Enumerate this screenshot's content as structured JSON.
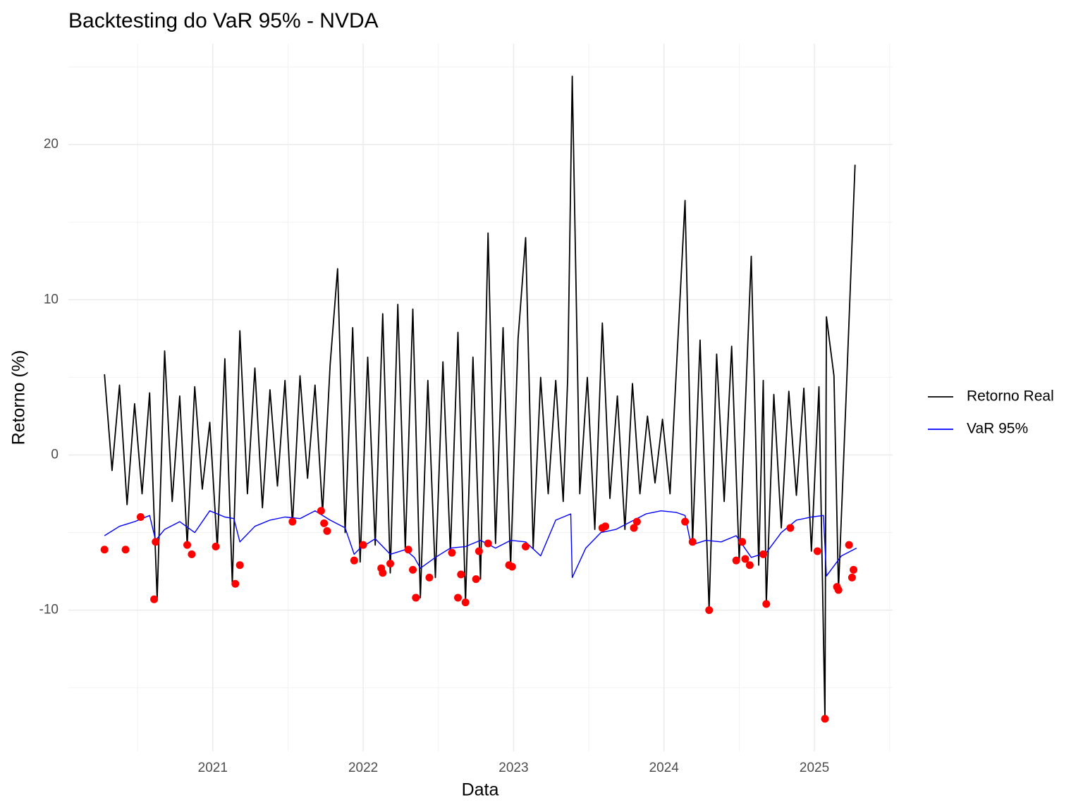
{
  "chart_data": {
    "type": "line",
    "title": "Backtesting do VaR 95% - NVDA",
    "x_label": "Data",
    "y_label": "Retorno (%)",
    "xlim": [
      2020.04,
      2025.52
    ],
    "xticks": [
      2021,
      2022,
      2023,
      2024,
      2025
    ],
    "ylim": [
      -19.1,
      26.5
    ],
    "yticks": [
      -10,
      0,
      10,
      20
    ],
    "grid": true,
    "legend": "right",
    "series": [
      {
        "name": "Retorno Real",
        "color": "#000000",
        "x": [
          2020.28,
          2020.33,
          2020.38,
          2020.43,
          2020.48,
          2020.53,
          2020.58,
          2020.63,
          2020.68,
          2020.73,
          2020.78,
          2020.83,
          2020.88,
          2020.93,
          2020.98,
          2021.03,
          2021.08,
          2021.13,
          2021.18,
          2021.23,
          2021.28,
          2021.33,
          2021.38,
          2021.43,
          2021.48,
          2021.53,
          2021.58,
          2021.63,
          2021.68,
          2021.73,
          2021.78,
          2021.83,
          2021.88,
          2021.93,
          2021.98,
          2022.03,
          2022.08,
          2022.13,
          2022.18,
          2022.23,
          2022.28,
          2022.33,
          2022.38,
          2022.43,
          2022.48,
          2022.53,
          2022.58,
          2022.63,
          2022.68,
          2022.73,
          2022.78,
          2022.83,
          2022.88,
          2022.93,
          2022.98,
          2023.03,
          2023.08,
          2023.13,
          2023.18,
          2023.23,
          2023.28,
          2023.33,
          2023.36,
          2023.39,
          2023.44,
          2023.49,
          2023.54,
          2023.59,
          2023.64,
          2023.69,
          2023.74,
          2023.79,
          2023.84,
          2023.89,
          2023.94,
          2023.99,
          2024.04,
          2024.09,
          2024.14,
          2024.19,
          2024.24,
          2024.3,
          2024.35,
          2024.4,
          2024.45,
          2024.5,
          2024.58,
          2024.63,
          2024.66,
          2024.68,
          2024.73,
          2024.78,
          2024.83,
          2024.88,
          2024.93,
          2024.98,
          2025.03,
          2025.07,
          2025.08,
          2025.13,
          2025.16,
          2025.21,
          2025.27
        ],
        "values": [
          5.2,
          -1.0,
          4.5,
          -3.2,
          3.3,
          -2.5,
          4.0,
          -9.3,
          6.7,
          -3.0,
          3.8,
          -5.8,
          4.4,
          -2.2,
          2.1,
          -6.0,
          6.2,
          -8.3,
          8.0,
          -2.5,
          5.6,
          -3.4,
          4.2,
          -2.0,
          4.8,
          -4.5,
          5.1,
          -1.5,
          4.5,
          -3.7,
          5.8,
          12.0,
          -5.0,
          8.2,
          -6.9,
          6.3,
          -5.8,
          9.1,
          -7.6,
          9.7,
          -6.1,
          9.4,
          -9.2,
          4.8,
          -7.9,
          6.0,
          -6.3,
          7.9,
          -9.5,
          6.3,
          -8.0,
          14.3,
          -5.7,
          8.2,
          -7.2,
          7.5,
          14.0,
          -6.0,
          5.0,
          -2.5,
          4.8,
          -3.0,
          5.0,
          24.4,
          -2.5,
          5.0,
          -4.8,
          8.5,
          -2.8,
          3.8,
          -4.8,
          4.6,
          -2.5,
          2.5,
          -1.8,
          2.3,
          -2.5,
          7.0,
          16.4,
          -5.6,
          7.4,
          -10.0,
          6.5,
          -3.0,
          7.0,
          -6.8,
          12.8,
          -7.1,
          4.8,
          -9.6,
          3.9,
          -4.7,
          4.1,
          -2.6,
          4.3,
          -6.2,
          4.4,
          -17.0,
          8.9,
          5.1,
          -8.7,
          3.6,
          18.7
        ]
      },
      {
        "name": "VaR 95%",
        "color": "#0000ff",
        "x": [
          2020.28,
          2020.38,
          2020.48,
          2020.58,
          2020.62,
          2020.68,
          2020.78,
          2020.88,
          2020.98,
          2021.08,
          2021.14,
          2021.18,
          2021.28,
          2021.38,
          2021.48,
          2021.58,
          2021.68,
          2021.78,
          2021.88,
          2021.94,
          2021.98,
          2022.08,
          2022.18,
          2022.28,
          2022.34,
          2022.38,
          2022.48,
          2022.58,
          2022.68,
          2022.78,
          2022.88,
          2022.98,
          2023.08,
          2023.18,
          2023.28,
          2023.38,
          2023.39,
          2023.48,
          2023.58,
          2023.68,
          2023.78,
          2023.88,
          2023.98,
          2024.08,
          2024.14,
          2024.18,
          2024.28,
          2024.38,
          2024.48,
          2024.58,
          2024.68,
          2024.78,
          2024.88,
          2024.98,
          2025.06,
          2025.08,
          2025.18,
          2025.28
        ],
        "values": [
          -5.2,
          -4.6,
          -4.3,
          -3.9,
          -5.5,
          -4.8,
          -4.3,
          -5.0,
          -3.6,
          -4.0,
          -4.1,
          -5.6,
          -4.6,
          -4.2,
          -4.0,
          -4.1,
          -3.6,
          -4.2,
          -4.7,
          -6.4,
          -6.0,
          -5.4,
          -6.4,
          -6.1,
          -6.6,
          -7.3,
          -6.6,
          -6.0,
          -5.9,
          -5.5,
          -6.0,
          -5.5,
          -5.6,
          -6.5,
          -4.2,
          -3.8,
          -7.9,
          -6.0,
          -5.0,
          -4.8,
          -4.3,
          -3.8,
          -3.6,
          -3.7,
          -3.9,
          -5.8,
          -5.5,
          -5.6,
          -5.2,
          -6.6,
          -6.3,
          -5.0,
          -4.2,
          -4.0,
          -3.9,
          -7.8,
          -6.5,
          -6.0
        ]
      },
      {
        "color": "#ff0000",
        "x": [
          2020.28,
          2020.42,
          2020.52,
          2020.61,
          2020.62,
          2020.83,
          2020.86,
          2021.02,
          2021.15,
          2021.18,
          2021.53,
          2021.72,
          2021.74,
          2021.76,
          2021.94,
          2022.0,
          2022.12,
          2022.13,
          2022.18,
          2022.3,
          2022.33,
          2022.35,
          2022.44,
          2022.59,
          2022.63,
          2022.65,
          2022.68,
          2022.75,
          2022.77,
          2022.83,
          2022.97,
          2022.99,
          2023.08,
          2023.59,
          2023.61,
          2023.8,
          2023.82,
          2024.14,
          2024.19,
          2024.3,
          2024.48,
          2024.52,
          2024.54,
          2024.57,
          2024.66,
          2024.68,
          2024.84,
          2025.02,
          2025.07,
          2025.15,
          2025.16,
          2025.23,
          2025.25,
          2025.26
        ],
        "values": [
          -6.1,
          -6.1,
          -4.0,
          -9.3,
          -5.6,
          -5.8,
          -6.4,
          -5.9,
          -8.3,
          -7.1,
          -4.3,
          -3.6,
          -4.4,
          -4.9,
          -6.8,
          -5.8,
          -7.3,
          -7.6,
          -7.0,
          -6.1,
          -7.4,
          -9.2,
          -7.9,
          -6.3,
          -9.2,
          -7.7,
          -9.5,
          -8.0,
          -6.2,
          -5.7,
          -7.1,
          -7.2,
          -5.9,
          -4.7,
          -4.6,
          -4.7,
          -4.3,
          -4.3,
          -5.6,
          -10.0,
          -6.8,
          -5.6,
          -6.7,
          -7.1,
          -6.4,
          -9.6,
          -4.7,
          -6.2,
          -17.0,
          -8.5,
          -8.7,
          -5.8,
          -7.9,
          -7.4
        ]
      }
    ]
  }
}
